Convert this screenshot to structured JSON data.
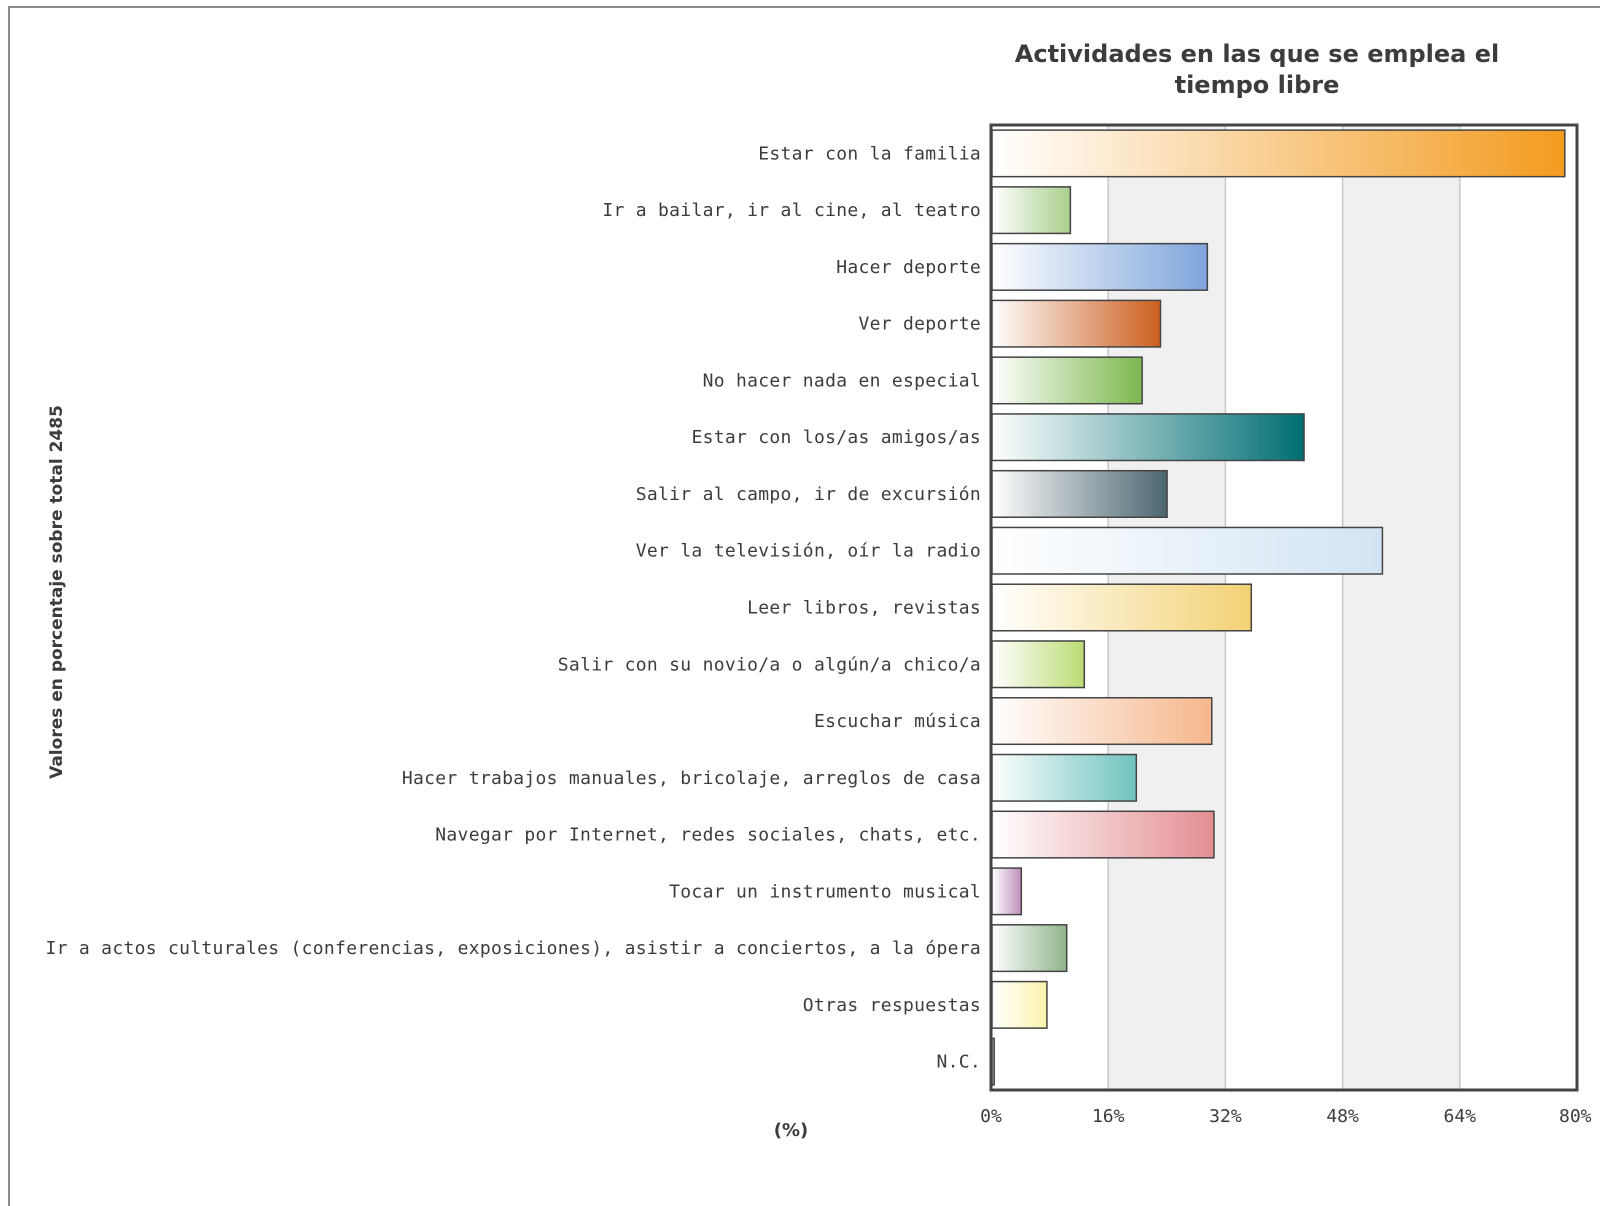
{
  "chart_data": {
    "type": "bar",
    "orientation": "horizontal",
    "title_lines": [
      "Actividades en las que se emplea el",
      "tiempo libre"
    ],
    "xlabel": "(%)",
    "ylabel": "Valores en porcentaje sobre total 2485",
    "xlim": [
      0,
      80
    ],
    "xticks": [
      "0%",
      "16%",
      "32%",
      "48%",
      "64%",
      "80%"
    ],
    "tick_values": [
      0,
      16,
      32,
      48,
      64,
      80
    ],
    "grid": "vertical, alternating bands",
    "categories": [
      "Estar con la familia",
      "Ir a bailar, ir al cine, al teatro",
      "Hacer deporte",
      "Ver deporte",
      "No hacer nada en especial",
      "Estar con los/as amigos/as",
      "Salir al campo, ir de excursión",
      "Ver la televisión, oír la radio",
      "Leer libros, revistas",
      "Salir con su novio/a o algún/a chico/a",
      "Escuchar música",
      "Hacer trabajos manuales, bricolaje, arreglos de casa",
      "Navegar por Internet, redes sociales, chats, etc.",
      "Tocar un instrumento musical",
      "Ir a actos culturales (conferencias, exposiciones), asistir a conciertos, a la ópera",
      "Otras respuestas",
      "N.C."
    ],
    "values": [
      78.2,
      10.7,
      29.4,
      23.0,
      20.5,
      42.6,
      23.9,
      53.3,
      35.4,
      12.6,
      30.0,
      19.7,
      30.3,
      4.0,
      10.2,
      7.5,
      0.3
    ],
    "colors": [
      "#f39b1f",
      "#a9cf8c",
      "#7ea5dc",
      "#cc5f1f",
      "#7cb84e",
      "#006e73",
      "#4c6670",
      "#d2e4f3",
      "#f3d274",
      "#bcdc74",
      "#f6b78c",
      "#6ec3bf",
      "#e48e92",
      "#bc8fbc",
      "#8fb48a",
      "#fbf3aa",
      "#777777"
    ]
  }
}
